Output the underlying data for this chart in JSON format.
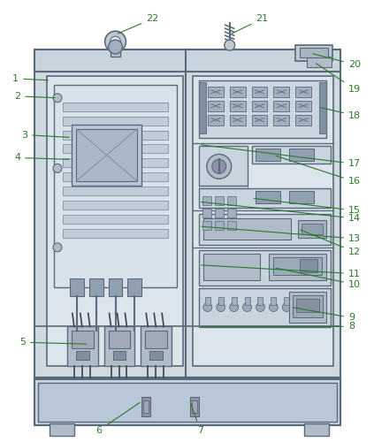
{
  "bg_color": "#ffffff",
  "cabinet_color": "#d0d8e0",
  "cabinet_edge_color": "#5a6a7a",
  "panel_color": "#e8edf2",
  "panel_edge_color": "#5a6a7a",
  "inner_bg": "#dce4ec",
  "label_color": "#2a7a2a",
  "line_color": "#5a6a7a",
  "annotation_color": "#2a7a2a",
  "title": "",
  "numbers": [
    1,
    2,
    3,
    4,
    5,
    6,
    7,
    8,
    9,
    10,
    11,
    12,
    13,
    14,
    15,
    16,
    17,
    18,
    19,
    20,
    21,
    22
  ]
}
